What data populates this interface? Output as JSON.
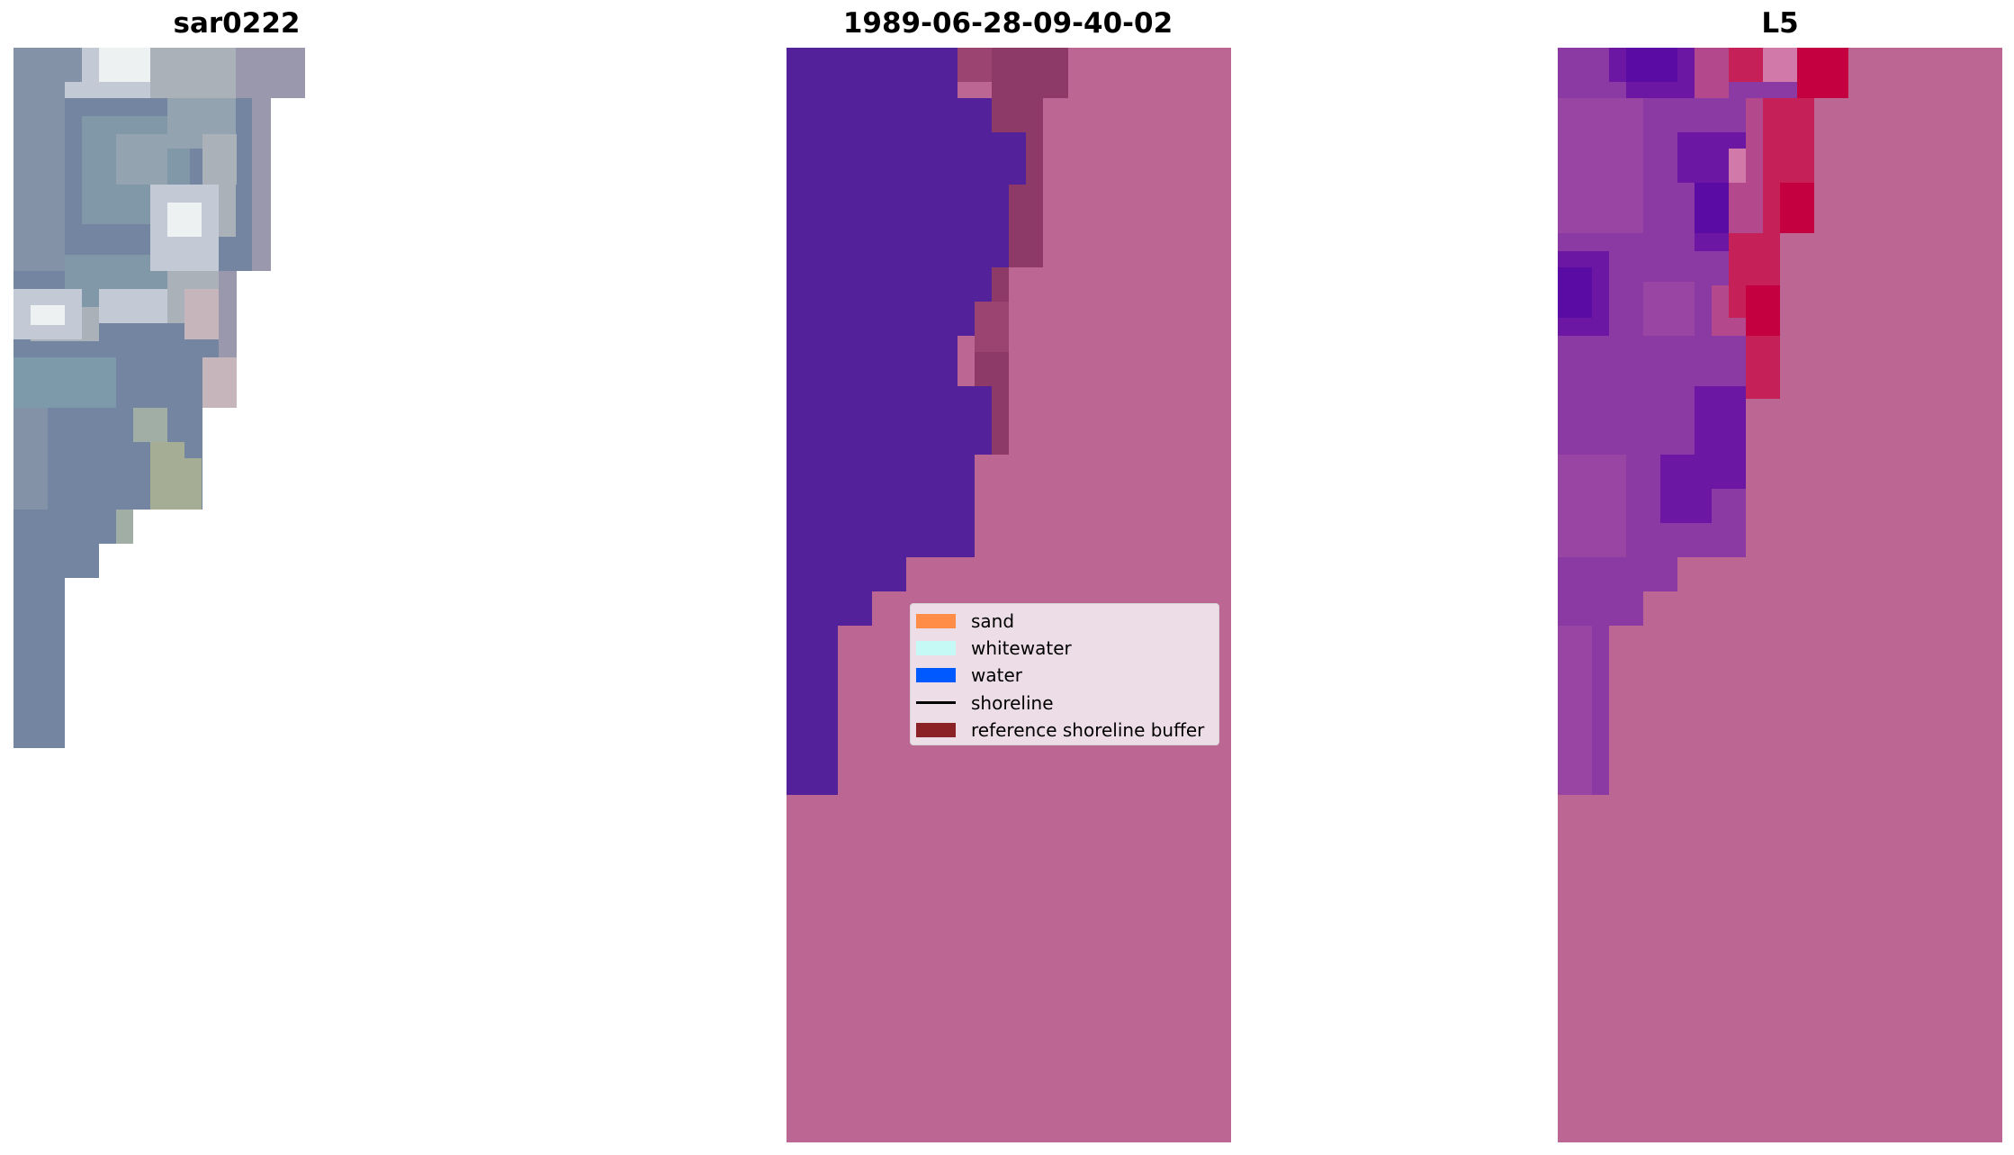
{
  "panels": [
    {
      "title": "sar0222"
    },
    {
      "title": "1989-06-28-09-40-02"
    },
    {
      "title": "L5"
    }
  ],
  "legend": {
    "items": [
      {
        "label": "sand",
        "color": "#ff8c47",
        "kind": "patch"
      },
      {
        "label": "whitewater",
        "color": "#c5f9f6",
        "kind": "patch"
      },
      {
        "label": "water",
        "color": "#0059ff",
        "kind": "patch"
      },
      {
        "label": "shoreline",
        "color": "#000000",
        "kind": "line"
      },
      {
        "label": "reference shoreline buffer",
        "color": "#8b2326",
        "kind": "patch"
      }
    ]
  },
  "colors": {
    "background_overlay": "#bc6694",
    "water_class": "#53229a",
    "buffer_overlap": "#8e3a68",
    "rgb_image_base": "#7385a0",
    "probability_high": "#c40040"
  }
}
